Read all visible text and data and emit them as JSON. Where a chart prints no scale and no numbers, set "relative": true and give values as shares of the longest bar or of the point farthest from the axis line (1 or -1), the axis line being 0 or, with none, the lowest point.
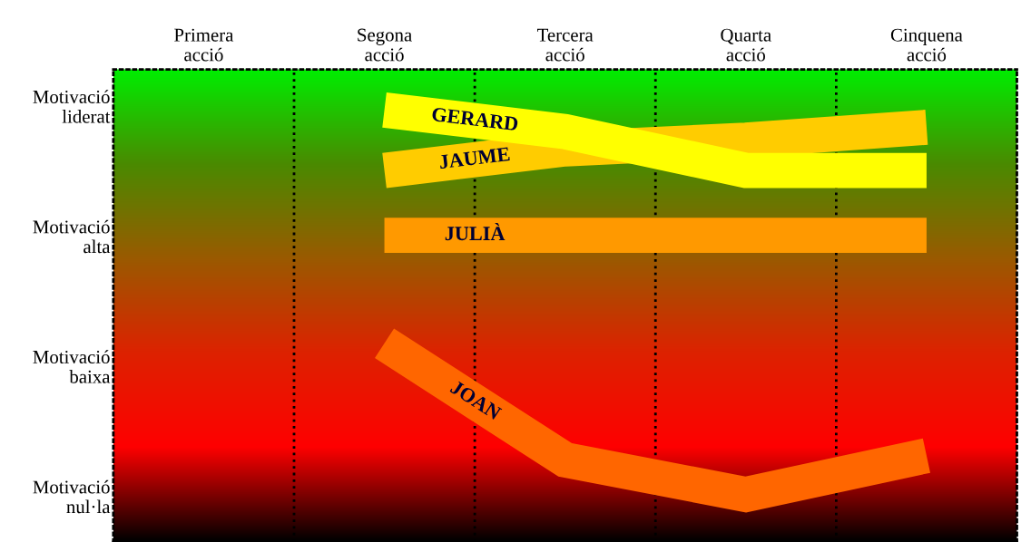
{
  "chart_data": {
    "type": "line",
    "relative": true,
    "categories": [
      "Primera\nacció",
      "Segona\nacció",
      "Tercera\nacció",
      "Quarta\nacció",
      "Cinquena\nacció"
    ],
    "annotations": [
      "Motivació\nliderat",
      "Motivació\nalta",
      "Motivació\nbaixa",
      "Motivació\nnul·la"
    ],
    "series": [
      {
        "name": "JAUME",
        "color": "#ffcc00",
        "values": [
          null,
          0.86,
          0.91,
          0.93,
          0.96
        ]
      },
      {
        "name": "GERARD",
        "color": "#ffff00",
        "values": [
          null,
          1,
          0.95,
          0.86,
          0.86
        ]
      },
      {
        "name": "JULIÀ",
        "color": "#ff9900",
        "values": [
          null,
          0.71,
          0.71,
          0.71,
          0.71
        ]
      },
      {
        "name": "JOAN",
        "color": "#ff6600",
        "values": [
          null,
          0.46,
          0.19,
          0.11,
          0.2
        ]
      }
    ],
    "grid": false,
    "marker": "none",
    "line_style": "solid"
  }
}
